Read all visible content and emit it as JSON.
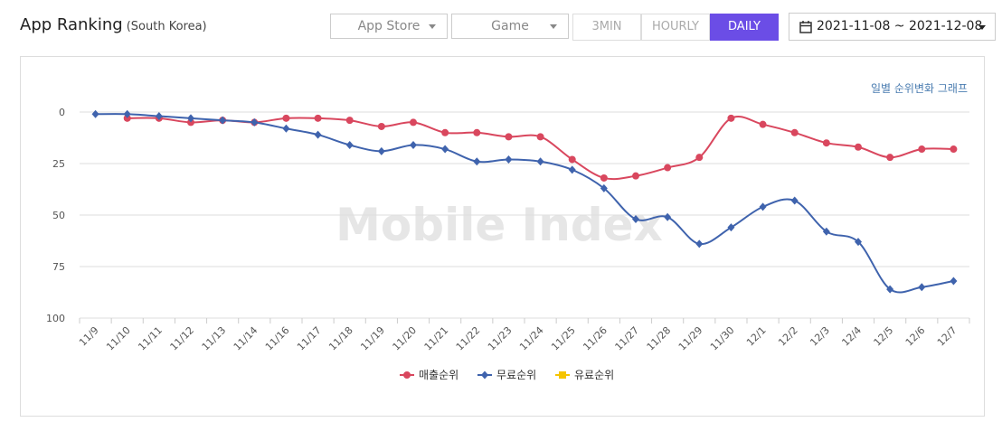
{
  "header": {
    "title": "App Ranking",
    "region": "(South Korea)",
    "store": "App Store",
    "category": "Game",
    "intervals": [
      "3MIN",
      "HOURLY",
      "DAILY"
    ],
    "active_interval": "DAILY",
    "date_range": "2021-11-08 ~ 2021-12-08"
  },
  "chart_data": {
    "type": "line",
    "subtitle": "일별 순위변화 그래프",
    "watermark": "Mobile Index",
    "categories": [
      "11/9",
      "11/10",
      "11/11",
      "11/12",
      "11/13",
      "11/14",
      "11/16",
      "11/17",
      "11/18",
      "11/19",
      "11/20",
      "11/21",
      "11/22",
      "11/23",
      "11/24",
      "11/25",
      "11/26",
      "11/27",
      "11/28",
      "11/29",
      "11/30",
      "12/1",
      "12/2",
      "12/3",
      "12/4",
      "12/5",
      "12/6",
      "12/7"
    ],
    "series": [
      {
        "name": "매출순위",
        "color": "#d9475e",
        "marker": "circle",
        "values": [
          null,
          3,
          3,
          5,
          4,
          5,
          3,
          3,
          4,
          7,
          5,
          10,
          10,
          12,
          12,
          23,
          32,
          31,
          27,
          22,
          3,
          6,
          10,
          15,
          17,
          22,
          18,
          18
        ]
      },
      {
        "name": "무료순위",
        "color": "#3f63ad",
        "marker": "diamond",
        "values": [
          1,
          1,
          2,
          3,
          4,
          5,
          8,
          11,
          16,
          19,
          16,
          18,
          24,
          23,
          24,
          28,
          37,
          52,
          51,
          64,
          56,
          46,
          43,
          58,
          63,
          86,
          85,
          82
        ]
      },
      {
        "name": "유료순위",
        "color": "#f5c400",
        "marker": "square",
        "values": [
          null,
          null,
          null,
          null,
          null,
          null,
          null,
          null,
          null,
          null,
          null,
          null,
          null,
          null,
          null,
          null,
          null,
          null,
          null,
          null,
          null,
          null,
          null,
          null,
          null,
          null,
          null,
          null
        ]
      }
    ],
    "ylim": [
      0,
      100
    ],
    "yticks": [
      0,
      25,
      50,
      75,
      100
    ],
    "y_reversed": true,
    "grid": true,
    "legend": "bottom"
  }
}
